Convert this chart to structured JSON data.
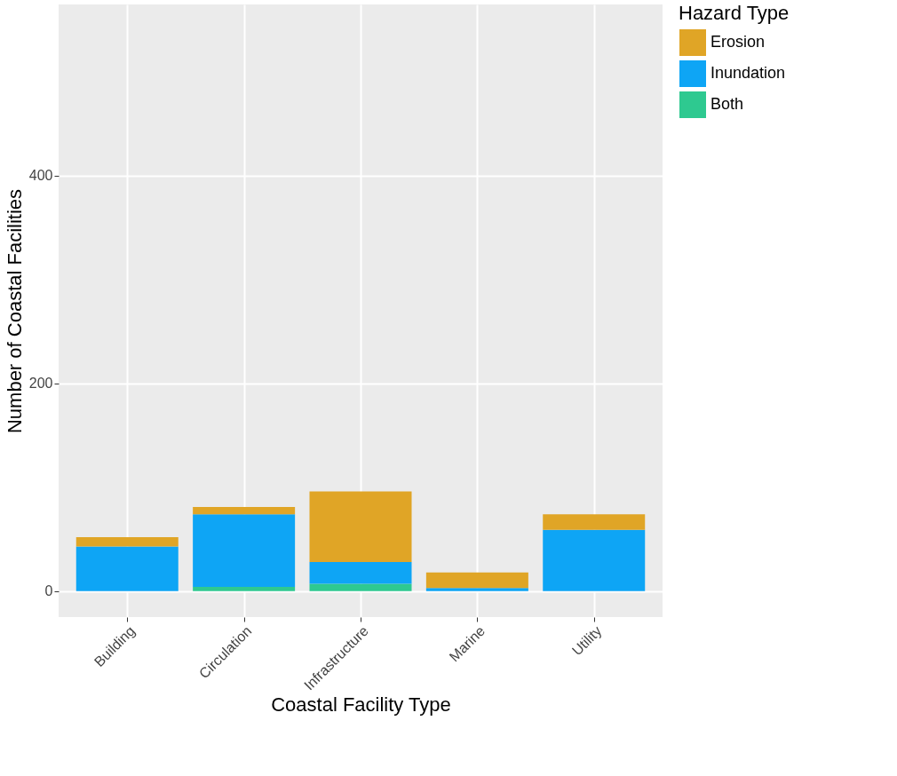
{
  "chart_data": {
    "type": "bar",
    "stacked": true,
    "xlabel": "Coastal Facility Type",
    "ylabel": "Number of Coastal Facilities",
    "legend_title": "Hazard Type",
    "categories": [
      "Building",
      "Circulation",
      "Infrastructure",
      "Marine",
      "Utility"
    ],
    "series": [
      {
        "name": "Both",
        "color": "#2ec990",
        "values": [
          0,
          4,
          7,
          0,
          0
        ]
      },
      {
        "name": "Inundation",
        "color": "#0ea5f5",
        "values": [
          43,
          70,
          21,
          3,
          59
        ]
      },
      {
        "name": "Erosion",
        "color": "#e0a526",
        "values": [
          9,
          7,
          68,
          15,
          15
        ]
      }
    ],
    "ylim": [
      -25,
      565
    ],
    "yticks": [
      0,
      200,
      400
    ],
    "grid": true,
    "legend": "right"
  }
}
